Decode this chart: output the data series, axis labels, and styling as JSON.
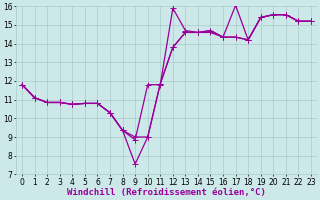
{
  "xlabel": "Windchill (Refroidissement éolien,°C)",
  "bg_color": "#cce8e8",
  "line_color": "#990099",
  "grid_color": "#aacccc",
  "xlim": [
    -0.5,
    23.5
  ],
  "ylim": [
    7,
    16
  ],
  "xticks": [
    0,
    1,
    2,
    3,
    4,
    5,
    6,
    7,
    8,
    9,
    10,
    11,
    12,
    13,
    14,
    15,
    16,
    17,
    18,
    19,
    20,
    21,
    22,
    23
  ],
  "yticks": [
    7,
    8,
    9,
    10,
    11,
    12,
    13,
    14,
    15,
    16
  ],
  "lines": [
    {
      "x": [
        0,
        1,
        2,
        3,
        4,
        5,
        6,
        7,
        8,
        9,
        10,
        11,
        12,
        13,
        14,
        15,
        16,
        17,
        18,
        19,
        20,
        21,
        22,
        23
      ],
      "y": [
        11.8,
        11.1,
        10.85,
        10.85,
        10.75,
        10.8,
        10.8,
        10.3,
        9.35,
        7.55,
        9.0,
        11.85,
        13.8,
        14.6,
        14.6,
        14.7,
        14.35,
        14.35,
        14.2,
        15.4,
        15.55,
        15.55,
        15.2,
        15.2
      ]
    },
    {
      "x": [
        0,
        1,
        2,
        3,
        4,
        5,
        6,
        7,
        8,
        9,
        10,
        11,
        12,
        13,
        14,
        15,
        16,
        17,
        18,
        19,
        20,
        21,
        22,
        23
      ],
      "y": [
        11.8,
        11.1,
        10.85,
        10.85,
        10.75,
        10.8,
        10.8,
        10.3,
        9.35,
        8.85,
        11.8,
        11.8,
        15.9,
        14.7,
        14.6,
        14.6,
        14.35,
        16.05,
        14.2,
        15.4,
        15.55,
        15.55,
        15.2,
        15.2
      ]
    },
    {
      "x": [
        0,
        1,
        2,
        3,
        4,
        5,
        6,
        7,
        8,
        9,
        10,
        11,
        12,
        13,
        14,
        15,
        16,
        17,
        18,
        19,
        20,
        21,
        22,
        23
      ],
      "y": [
        11.8,
        11.1,
        10.85,
        10.85,
        10.75,
        10.8,
        10.8,
        10.3,
        9.35,
        9.0,
        9.0,
        11.85,
        13.8,
        14.6,
        14.6,
        14.7,
        14.35,
        14.35,
        14.2,
        15.4,
        15.55,
        15.55,
        15.2,
        15.2
      ]
    }
  ],
  "marker": "+",
  "marker_size": 4,
  "line_width": 0.9,
  "tick_fontsize": 5.5,
  "xlabel_fontsize": 6.5,
  "figsize": [
    3.2,
    2.0
  ],
  "dpi": 100
}
